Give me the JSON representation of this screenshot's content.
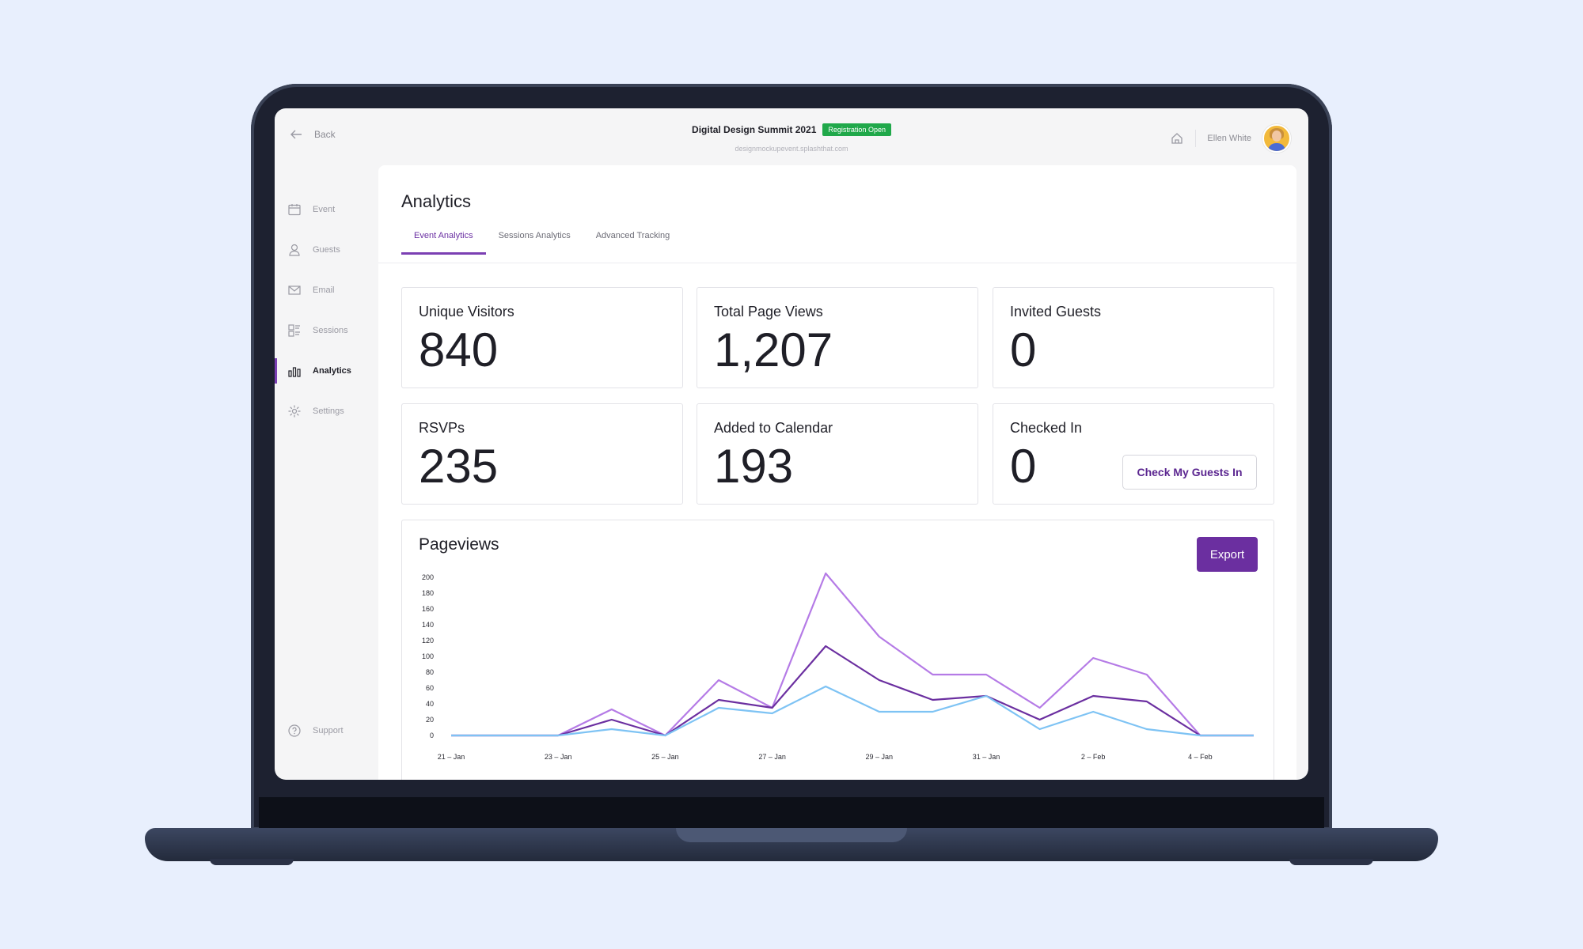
{
  "header": {
    "back_label": "Back",
    "event_title": "Digital Design Summit 2021",
    "status_badge": "Registration Open",
    "event_url": "designmockupevent.splashthat.com",
    "user_name": "Ellen White"
  },
  "sidebar": {
    "items": [
      {
        "label": "Event",
        "icon": "calendar-icon"
      },
      {
        "label": "Guests",
        "icon": "user-icon"
      },
      {
        "label": "Email",
        "icon": "mail-icon"
      },
      {
        "label": "Sessions",
        "icon": "sessions-icon"
      },
      {
        "label": "Analytics",
        "icon": "bar-chart-icon"
      },
      {
        "label": "Settings",
        "icon": "gear-icon"
      }
    ],
    "support_label": "Support"
  },
  "main": {
    "title": "Analytics",
    "tabs": [
      {
        "label": "Event Analytics"
      },
      {
        "label": "Sessions Analytics"
      },
      {
        "label": "Advanced Tracking"
      }
    ],
    "stats": [
      {
        "label": "Unique Visitors",
        "value": "840"
      },
      {
        "label": "Total Page Views",
        "value": "1,207"
      },
      {
        "label": "Invited Guests",
        "value": "0"
      },
      {
        "label": "RSVPs",
        "value": "235"
      },
      {
        "label": "Added to Calendar",
        "value": "193"
      },
      {
        "label": "Checked In",
        "value": "0"
      }
    ],
    "check_in_button": "Check My Guests In",
    "chart_title": "Pageviews",
    "export_button": "Export"
  },
  "colors": {
    "accent": "#6b2fa0",
    "badge_green": "#20a84a",
    "series_light_purple": "#b57be6",
    "series_dark_purple": "#6b2fa0",
    "series_light_blue": "#7ec3f4"
  },
  "chart_data": {
    "type": "line",
    "x": [
      "21 – Jan",
      "22 – Jan",
      "23 – Jan",
      "24 – Jan",
      "25 – Jan",
      "26 – Jan",
      "27 – Jan",
      "28 – Jan",
      "29 – Jan",
      "30 – Jan",
      "31 – Jan",
      "1 – Feb",
      "2 – Feb",
      "3 – Feb",
      "4 – Feb",
      "5 – Feb"
    ],
    "x_tick_labels": [
      "21 – Jan",
      "23 – Jan",
      "25 – Jan",
      "27 – Jan",
      "29 – Jan",
      "31 – Jan",
      "2 – Feb",
      "4 – Feb"
    ],
    "y_ticks": [
      0,
      20,
      40,
      60,
      80,
      100,
      120,
      140,
      160,
      180,
      200
    ],
    "ylim": [
      0,
      200
    ],
    "series": [
      {
        "color": "#b57be6",
        "values": [
          0,
          0,
          0,
          33,
          0,
          70,
          35,
          205,
          125,
          77,
          77,
          35,
          98,
          77,
          0,
          0
        ]
      },
      {
        "color": "#6b2fa0",
        "values": [
          0,
          0,
          0,
          20,
          0,
          45,
          35,
          113,
          70,
          45,
          50,
          20,
          50,
          43,
          0,
          0
        ]
      },
      {
        "color": "#7ec3f4",
        "values": [
          0,
          0,
          0,
          8,
          0,
          35,
          28,
          62,
          30,
          30,
          50,
          8,
          30,
          8,
          0,
          0
        ]
      }
    ],
    "grid": false
  }
}
